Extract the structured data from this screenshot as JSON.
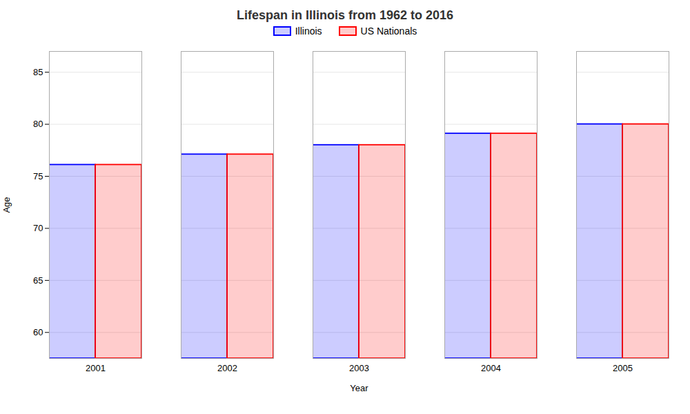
{
  "chart_data": {
    "type": "bar",
    "title": "Lifespan in Illinois from 1962 to 2016",
    "xlabel": "Year",
    "ylabel": "Age",
    "categories": [
      "2001",
      "2002",
      "2003",
      "2004",
      "2005"
    ],
    "series": [
      {
        "name": "Illinois",
        "color": "#0000ff",
        "values": [
          76.1,
          77.1,
          78.0,
          79.1,
          80.0
        ]
      },
      {
        "name": "US Nationals",
        "color": "#ff0000",
        "values": [
          76.1,
          77.1,
          78.0,
          79.1,
          80.0
        ]
      }
    ],
    "ylim": [
      57.5,
      87
    ],
    "yticks": [
      60,
      65,
      70,
      75,
      80,
      85
    ],
    "grid": true,
    "legend": "top"
  }
}
